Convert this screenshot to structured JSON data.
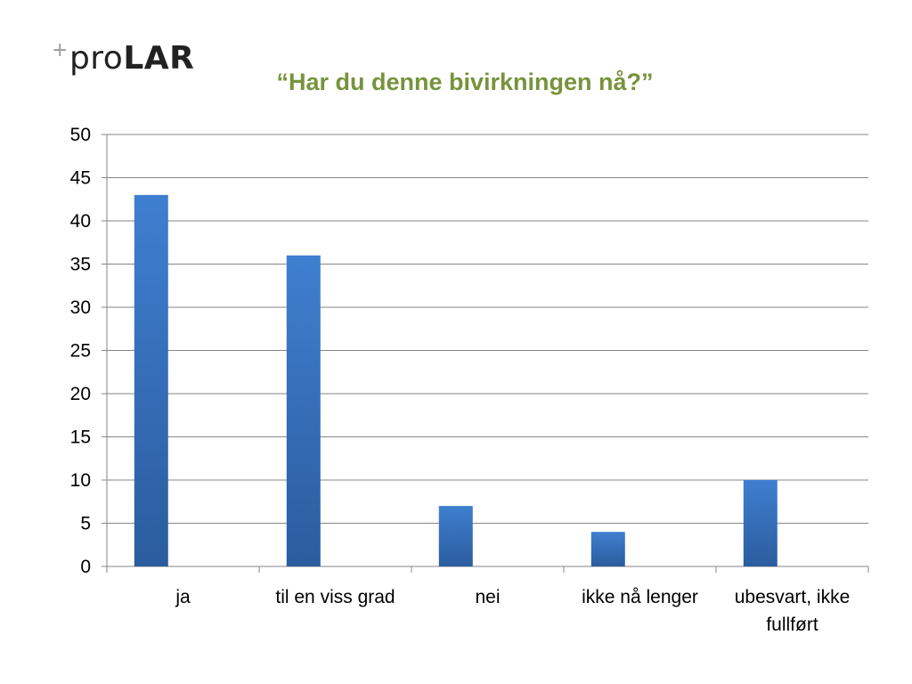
{
  "logo": {
    "plus": "+",
    "pro": "pro",
    "lar": "LAR"
  },
  "colors": {
    "title": "#77933c",
    "bar_light": "#3f7fd0",
    "bar_dark": "#2b5c9e",
    "grid": "#868686"
  },
  "chart_data": {
    "type": "bar",
    "title": "“Har du denne bivirkningen nå?”",
    "categories": [
      [
        "ja"
      ],
      [
        "til en viss grad"
      ],
      [
        "nei"
      ],
      [
        "ikke nå lenger"
      ],
      [
        "ubesvart, ikke",
        "fullført"
      ]
    ],
    "values": [
      43,
      36,
      7,
      4,
      10
    ],
    "xlabel": "",
    "ylabel": "",
    "ylim": [
      0,
      50
    ],
    "yticks": [
      0,
      5,
      10,
      15,
      20,
      25,
      30,
      35,
      40,
      45,
      50
    ],
    "grid": true,
    "legend": "none"
  }
}
